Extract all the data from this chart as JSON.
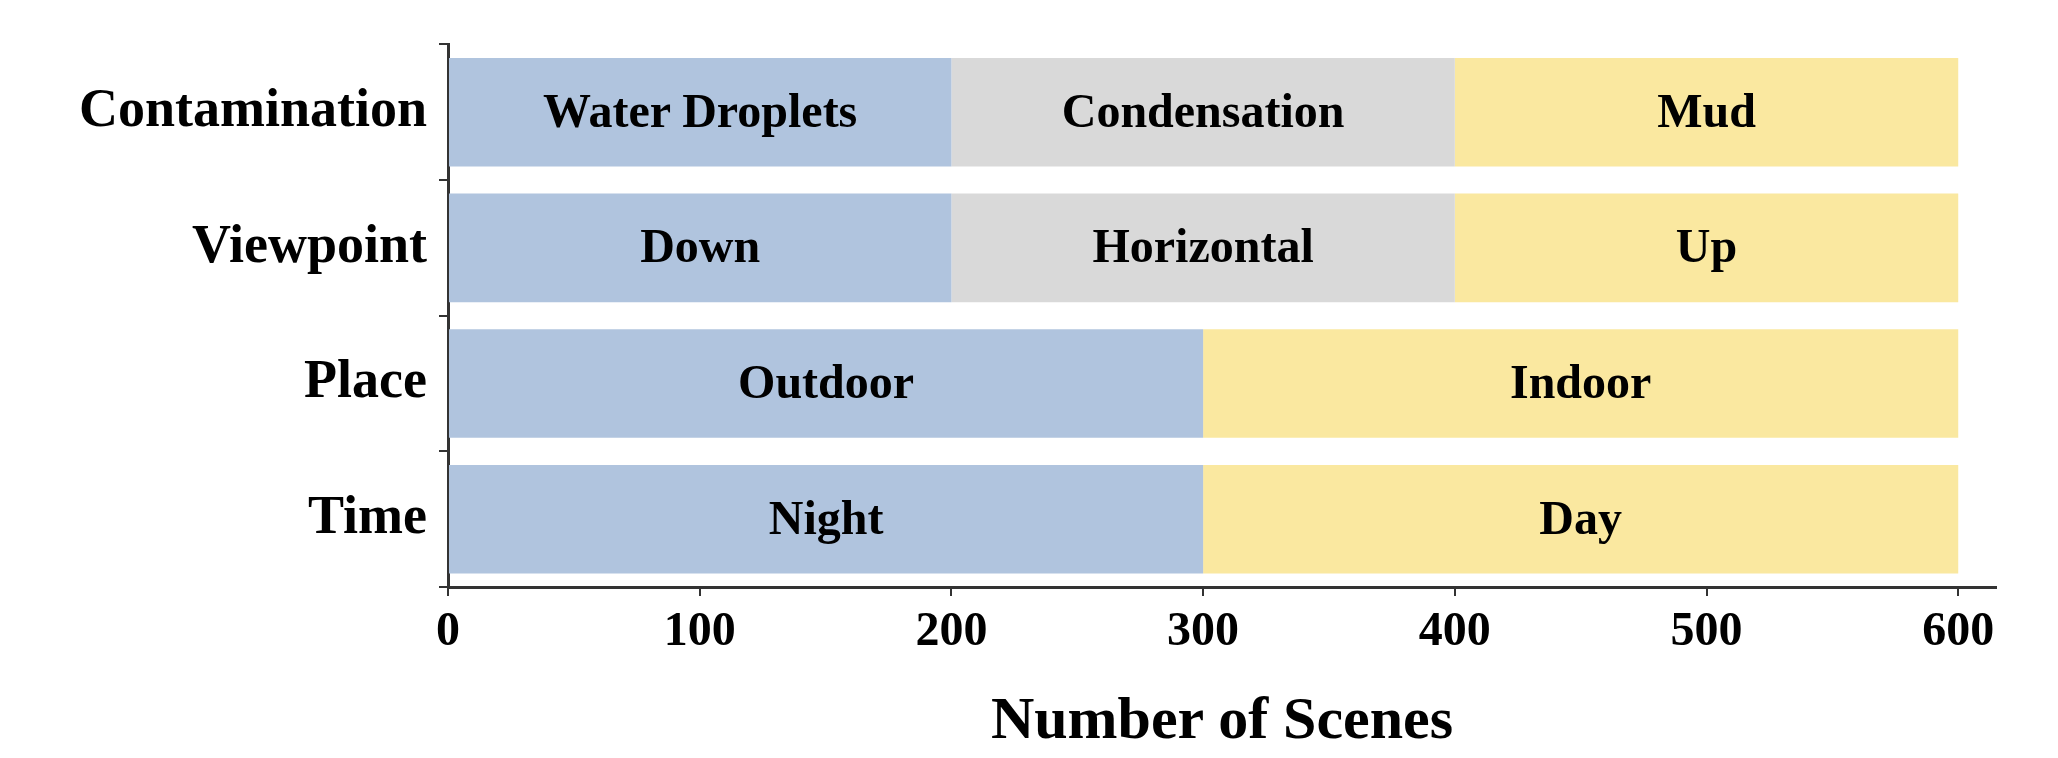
{
  "chart_data": {
    "type": "bar",
    "orientation": "horizontal",
    "stacked": true,
    "xlabel": "Number of Scenes",
    "categories": [
      "Contamination",
      "Viewpoint",
      "Place",
      "Time"
    ],
    "series": [
      {
        "color": "#b0c4de",
        "values": [
          200,
          200,
          300,
          300
        ],
        "value_labels": [
          "Water Droplets",
          "Down",
          "Outdoor",
          "Night"
        ]
      },
      {
        "color": "#d9d9d9",
        "values": [
          200,
          200,
          null,
          null
        ],
        "value_labels": [
          "Condensation",
          "Horizontal",
          null,
          null
        ]
      },
      {
        "color": "#fae8a0",
        "values": [
          200,
          200,
          300,
          300
        ],
        "value_labels": [
          "Mud",
          "Up",
          "Indoor",
          "Day"
        ]
      }
    ],
    "xlim": [
      0,
      615
    ],
    "xticks": [
      0,
      100,
      200,
      300,
      400,
      500,
      600
    ]
  }
}
